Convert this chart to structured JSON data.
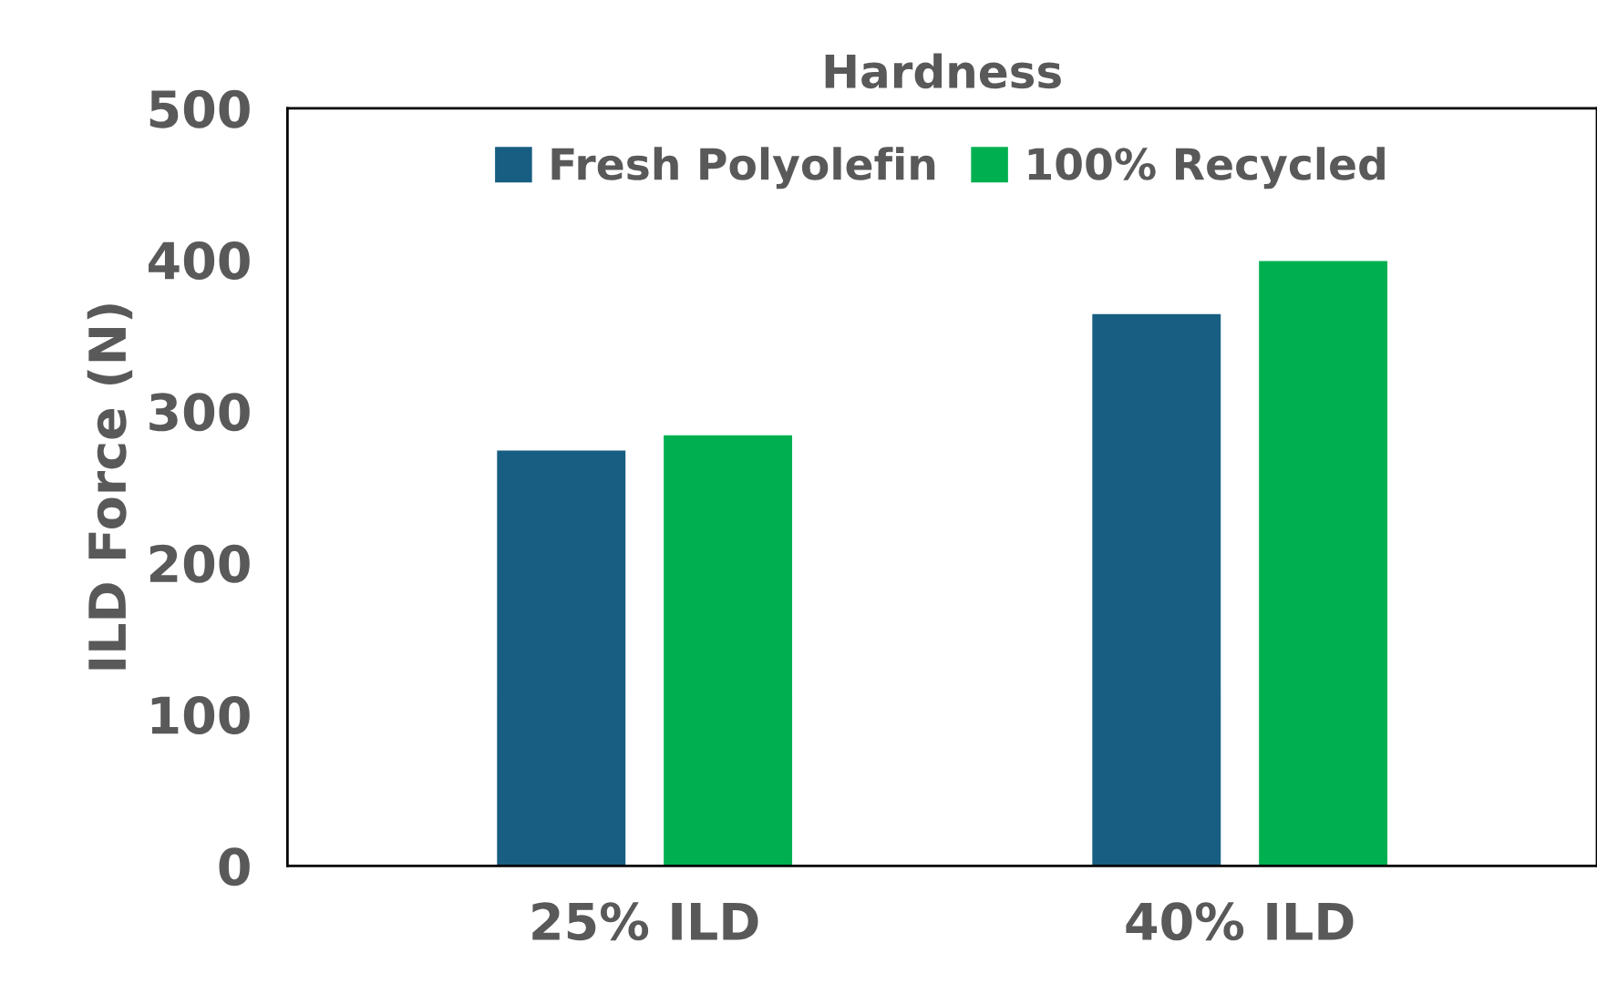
{
  "chart_data": {
    "type": "bar",
    "title": "Hardness",
    "ylabel": "ILD Force (N)",
    "categories": [
      "25% ILD",
      "40% ILD"
    ],
    "series": [
      {
        "name": "Fresh Polyolefin",
        "color": "#175e82",
        "values": [
          275,
          365
        ]
      },
      {
        "name": "100% Recycled",
        "color": "#00b050",
        "values": [
          285,
          400
        ]
      }
    ],
    "ylim": [
      0,
      500
    ],
    "yticks": [
      0,
      100,
      200,
      300,
      400,
      500
    ],
    "grid": false,
    "legend": "top"
  }
}
